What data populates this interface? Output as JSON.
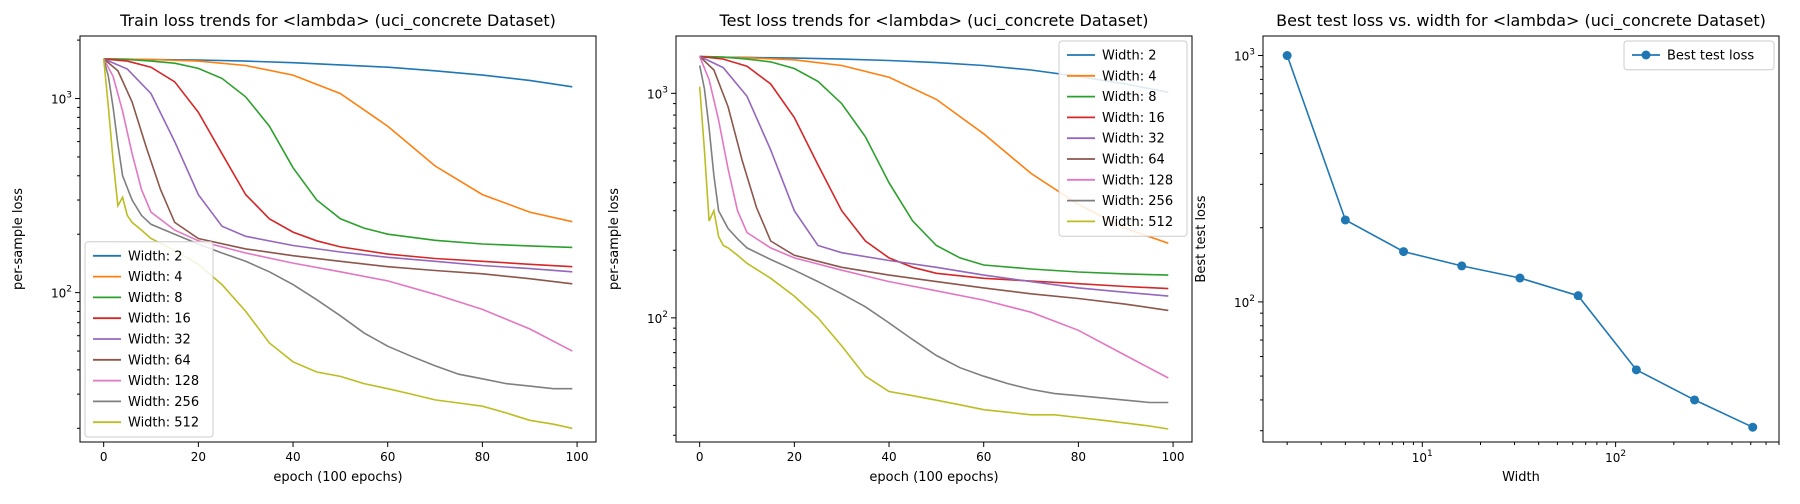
{
  "chart_data": [
    {
      "type": "line",
      "title": "Train loss trends for <lambda> (uci_concrete Dataset)",
      "xlabel": "epoch (100 epochs)",
      "ylabel": "per-sample loss",
      "yscale": "log",
      "xlim": [
        -5,
        104
      ],
      "ylim": [
        17,
        2100
      ],
      "x_ticks": [
        0,
        20,
        40,
        60,
        80,
        100
      ],
      "y_ticks": [
        {
          "value": 100,
          "base": "10",
          "exp": "2"
        },
        {
          "value": 1000,
          "base": "10",
          "exp": "3"
        }
      ],
      "legend_position": "lower-left",
      "series": [
        {
          "name": "Width: 2",
          "color": "#1f77b4",
          "x": [
            0,
            10,
            20,
            30,
            40,
            50,
            60,
            70,
            80,
            90,
            99
          ],
          "y": [
            1600,
            1590,
            1580,
            1560,
            1530,
            1490,
            1450,
            1390,
            1320,
            1240,
            1150
          ]
        },
        {
          "name": "Width: 4",
          "color": "#ff7f0e",
          "x": [
            0,
            10,
            20,
            30,
            40,
            50,
            60,
            70,
            80,
            90,
            99
          ],
          "y": [
            1600,
            1590,
            1560,
            1480,
            1320,
            1060,
            720,
            450,
            320,
            260,
            232
          ]
        },
        {
          "name": "Width: 8",
          "color": "#2ca02c",
          "x": [
            0,
            5,
            10,
            15,
            20,
            25,
            30,
            35,
            40,
            45,
            50,
            55,
            60,
            70,
            80,
            90,
            99
          ],
          "y": [
            1600,
            1590,
            1560,
            1520,
            1430,
            1270,
            1020,
            720,
            440,
            300,
            240,
            215,
            200,
            186,
            178,
            174,
            171
          ]
        },
        {
          "name": "Width: 16",
          "color": "#d62728",
          "x": [
            0,
            5,
            10,
            15,
            20,
            25,
            30,
            35,
            40,
            45,
            50,
            60,
            70,
            80,
            90,
            99
          ],
          "y": [
            1600,
            1560,
            1450,
            1220,
            850,
            520,
            320,
            240,
            205,
            185,
            172,
            158,
            150,
            145,
            140,
            136
          ]
        },
        {
          "name": "Width: 32",
          "color": "#9467bd",
          "x": [
            0,
            5,
            10,
            15,
            20,
            25,
            30,
            40,
            50,
            60,
            70,
            80,
            90,
            99
          ],
          "y": [
            1600,
            1420,
            1060,
            600,
            320,
            220,
            195,
            175,
            162,
            152,
            145,
            138,
            133,
            128
          ]
        },
        {
          "name": "Width: 64",
          "color": "#8c564b",
          "x": [
            0,
            3,
            6,
            9,
            12,
            15,
            20,
            30,
            40,
            50,
            60,
            70,
            80,
            90,
            99
          ],
          "y": [
            1600,
            1390,
            960,
            560,
            340,
            230,
            190,
            168,
            155,
            145,
            136,
            130,
            125,
            118,
            111
          ]
        },
        {
          "name": "Width: 128",
          "color": "#e377c2",
          "x": [
            0,
            2,
            4,
            6,
            8,
            10,
            15,
            20,
            30,
            40,
            50,
            60,
            70,
            80,
            90,
            99
          ],
          "y": [
            1600,
            1300,
            860,
            520,
            340,
            260,
            210,
            185,
            160,
            142,
            128,
            115,
            98,
            82,
            65,
            50
          ]
        },
        {
          "name": "Width: 256",
          "color": "#7f7f7f",
          "x": [
            0,
            1,
            2,
            3,
            4,
            6,
            8,
            10,
            15,
            20,
            25,
            30,
            35,
            40,
            45,
            50,
            55,
            60,
            65,
            70,
            75,
            80,
            85,
            90,
            95,
            99
          ],
          "y": [
            1600,
            1300,
            900,
            580,
            400,
            300,
            250,
            225,
            200,
            178,
            160,
            145,
            128,
            110,
            92,
            76,
            62,
            53,
            47,
            42,
            38,
            36,
            34,
            33,
            32,
            32
          ]
        },
        {
          "name": "Width: 512",
          "color": "#bcbd22",
          "x": [
            0,
            1,
            2,
            3,
            4,
            5,
            6,
            8,
            10,
            15,
            20,
            25,
            30,
            35,
            40,
            45,
            50,
            55,
            60,
            65,
            70,
            75,
            80,
            85,
            90,
            95,
            99
          ],
          "y": [
            1600,
            900,
            480,
            280,
            310,
            250,
            230,
            210,
            190,
            165,
            140,
            110,
            80,
            55,
            44,
            39,
            37,
            34,
            32,
            30,
            28,
            27,
            26,
            24,
            22,
            21,
            20
          ]
        }
      ]
    },
    {
      "type": "line",
      "title": "Test loss trends for <lambda> (uci_concrete Dataset)",
      "xlabel": "epoch (100 epochs)",
      "ylabel": "per-sample loss",
      "yscale": "log",
      "xlim": [
        -5,
        104
      ],
      "ylim": [
        28,
        1800
      ],
      "x_ticks": [
        0,
        20,
        40,
        60,
        80,
        100
      ],
      "y_ticks": [
        {
          "value": 100,
          "base": "10",
          "exp": "2"
        },
        {
          "value": 1000,
          "base": "10",
          "exp": "3"
        }
      ],
      "legend_position": "upper-right",
      "series": [
        {
          "name": "Width: 2",
          "color": "#1f77b4",
          "x": [
            0,
            10,
            20,
            30,
            40,
            50,
            60,
            70,
            80,
            90,
            99
          ],
          "y": [
            1450,
            1445,
            1435,
            1420,
            1400,
            1370,
            1330,
            1270,
            1190,
            1100,
            1010
          ]
        },
        {
          "name": "Width: 4",
          "color": "#ff7f0e",
          "x": [
            0,
            10,
            20,
            30,
            40,
            50,
            60,
            70,
            80,
            90,
            99
          ],
          "y": [
            1450,
            1440,
            1410,
            1330,
            1180,
            940,
            660,
            440,
            320,
            250,
            215
          ]
        },
        {
          "name": "Width: 8",
          "color": "#2ca02c",
          "x": [
            0,
            5,
            10,
            15,
            20,
            25,
            30,
            35,
            40,
            45,
            50,
            55,
            60,
            70,
            80,
            90,
            99
          ],
          "y": [
            1460,
            1450,
            1420,
            1380,
            1290,
            1130,
            900,
            640,
            400,
            270,
            210,
            185,
            172,
            165,
            160,
            157,
            155
          ]
        },
        {
          "name": "Width: 16",
          "color": "#d62728",
          "x": [
            0,
            5,
            10,
            15,
            20,
            25,
            30,
            35,
            40,
            45,
            50,
            60,
            70,
            80,
            90,
            99
          ],
          "y": [
            1460,
            1420,
            1320,
            1100,
            780,
            480,
            300,
            220,
            185,
            168,
            158,
            150,
            146,
            142,
            138,
            135
          ]
        },
        {
          "name": "Width: 32",
          "color": "#9467bd",
          "x": [
            0,
            5,
            10,
            15,
            20,
            25,
            30,
            40,
            50,
            60,
            70,
            80,
            90,
            99
          ],
          "y": [
            1460,
            1300,
            970,
            560,
            300,
            210,
            195,
            180,
            168,
            155,
            145,
            136,
            130,
            125
          ]
        },
        {
          "name": "Width: 64",
          "color": "#8c564b",
          "x": [
            0,
            3,
            6,
            9,
            12,
            15,
            20,
            30,
            40,
            50,
            60,
            70,
            80,
            90,
            99
          ],
          "y": [
            1460,
            1270,
            870,
            500,
            310,
            220,
            190,
            168,
            155,
            145,
            136,
            128,
            122,
            115,
            108
          ]
        },
        {
          "name": "Width: 128",
          "color": "#e377c2",
          "x": [
            0,
            2,
            4,
            6,
            8,
            10,
            15,
            20,
            30,
            40,
            50,
            60,
            70,
            80,
            90,
            99
          ],
          "y": [
            1460,
            1150,
            760,
            460,
            300,
            240,
            205,
            185,
            163,
            145,
            132,
            120,
            106,
            88,
            68,
            54
          ]
        },
        {
          "name": "Width: 256",
          "color": "#7f7f7f",
          "x": [
            0,
            1,
            2,
            3,
            4,
            6,
            8,
            10,
            15,
            20,
            25,
            30,
            35,
            40,
            45,
            50,
            55,
            60,
            65,
            70,
            75,
            80,
            85,
            90,
            95,
            99
          ],
          "y": [
            1330,
            1050,
            700,
            430,
            300,
            250,
            225,
            205,
            182,
            163,
            145,
            128,
            112,
            95,
            80,
            68,
            60,
            55,
            51,
            48,
            46,
            45,
            44,
            43,
            42,
            42
          ]
        },
        {
          "name": "Width: 512",
          "color": "#bcbd22",
          "x": [
            0,
            1,
            2,
            3,
            4,
            5,
            6,
            8,
            10,
            15,
            20,
            25,
            30,
            35,
            40,
            45,
            50,
            55,
            60,
            65,
            70,
            75,
            80,
            85,
            90,
            95,
            99
          ],
          "y": [
            1070,
            560,
            270,
            300,
            230,
            210,
            205,
            190,
            175,
            150,
            125,
            100,
            75,
            55,
            47,
            45,
            43,
            41,
            39,
            38,
            37,
            37,
            36,
            35,
            34,
            33,
            32
          ]
        }
      ]
    },
    {
      "type": "line",
      "title": "Best test loss vs. width for <lambda> (uci_concrete Dataset)",
      "xlabel": "Width",
      "ylabel": "Best test loss",
      "xscale": "log",
      "yscale": "log",
      "xlim": [
        1.5,
        700
      ],
      "ylim": [
        27,
        1200
      ],
      "x_ticks": [
        {
          "value": 10,
          "base": "10",
          "exp": "1"
        },
        {
          "value": 100,
          "base": "10",
          "exp": "2"
        }
      ],
      "y_ticks": [
        {
          "value": 100,
          "base": "10",
          "exp": "2"
        },
        {
          "value": 1000,
          "base": "10",
          "exp": "3"
        }
      ],
      "legend_position": "upper-right",
      "markers": true,
      "series": [
        {
          "name": "Best test loss",
          "color": "#1f77b4",
          "x": [
            2,
            4,
            8,
            16,
            32,
            64,
            128,
            256,
            512
          ],
          "y": [
            1000,
            215,
            160,
            140,
            125,
            106,
            53,
            40,
            31
          ]
        }
      ]
    }
  ]
}
